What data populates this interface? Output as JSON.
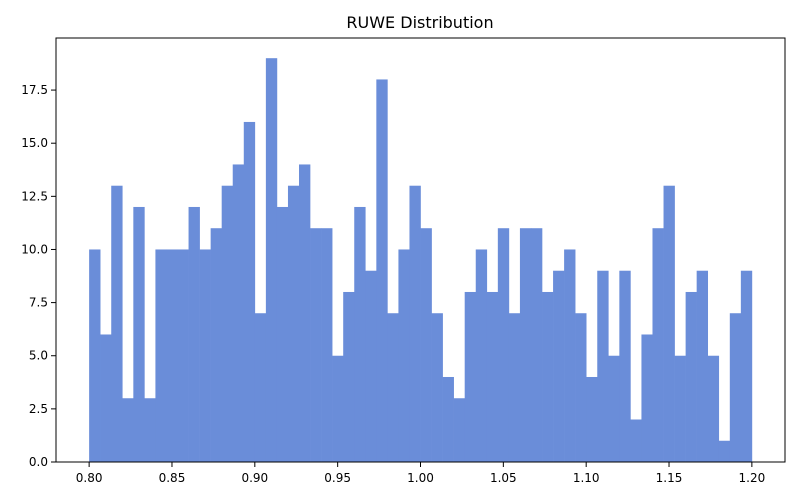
{
  "chart_data": {
    "type": "bar",
    "title": "RUWE Distribution",
    "xlabel": "",
    "ylabel": "",
    "bin_start": 0.8,
    "bin_width": 0.006667,
    "values": [
      10,
      6,
      13,
      3,
      12,
      3,
      10,
      10,
      10,
      12,
      10,
      11,
      13,
      14,
      16,
      7,
      19,
      12,
      13,
      14,
      11,
      11,
      5,
      8,
      12,
      9,
      18,
      7,
      10,
      13,
      11,
      7,
      4,
      3,
      8,
      10,
      8,
      11,
      7,
      11,
      11,
      8,
      9,
      10,
      7,
      4,
      9,
      5,
      9,
      2,
      6,
      11,
      13,
      5,
      8,
      9,
      5,
      1,
      7,
      9
    ],
    "xlim": [
      0.78,
      1.22
    ],
    "ylim": [
      0,
      19.95
    ],
    "x_ticks": [
      0.8,
      0.85,
      0.9,
      0.95,
      1.0,
      1.05,
      1.1,
      1.15,
      1.2
    ],
    "x_tick_labels": [
      "0.80",
      "0.85",
      "0.90",
      "0.95",
      "1.00",
      "1.05",
      "1.10",
      "1.15",
      "1.20"
    ],
    "y_ticks": [
      0,
      2.5,
      5,
      7.5,
      10,
      12.5,
      15,
      17.5
    ],
    "y_tick_labels": [
      "0.0",
      "2.5",
      "5.0",
      "7.5",
      "10.0",
      "12.5",
      "15.0",
      "17.5"
    ],
    "bar_color": "#6a8dd9",
    "grid": false,
    "legend": "none"
  }
}
